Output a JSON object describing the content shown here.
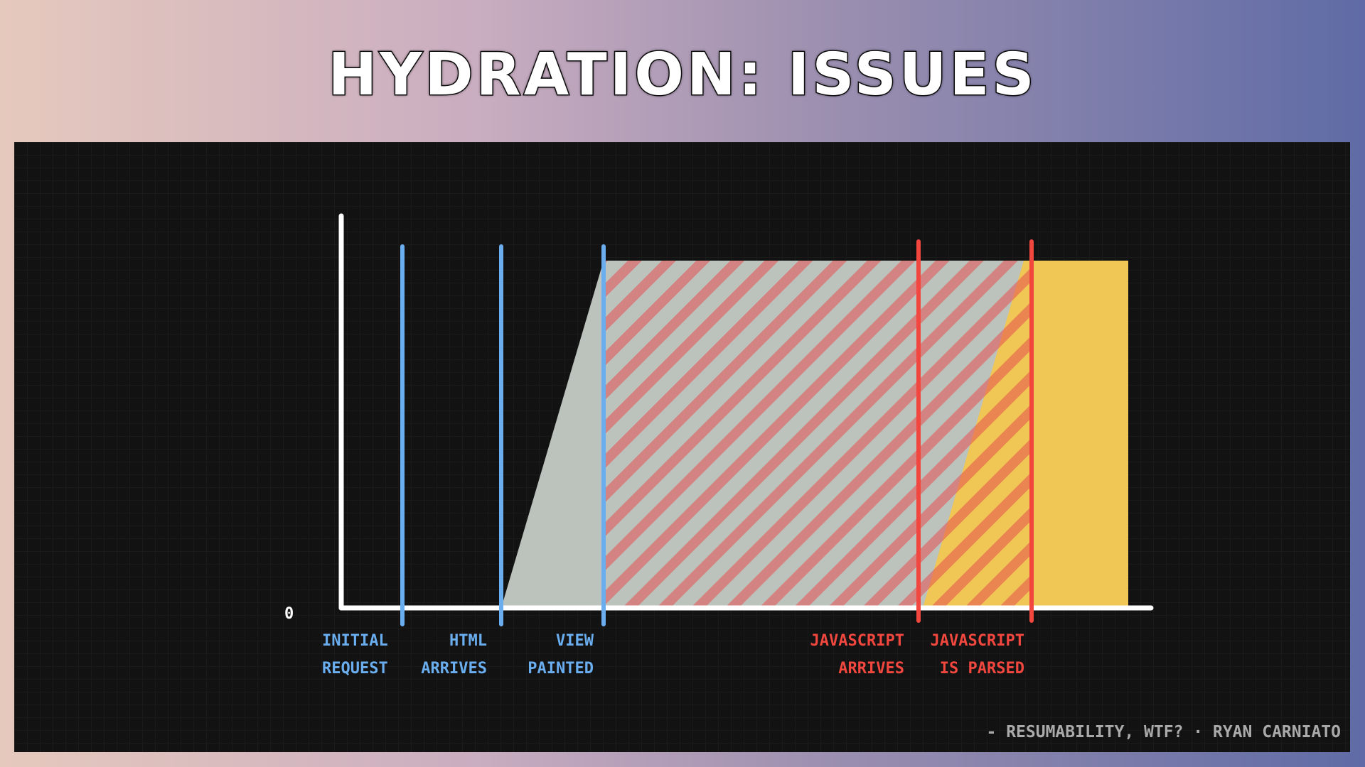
{
  "title": "HYDRATION: ISSUES",
  "axis": {
    "zero_label": "0"
  },
  "markers": [
    {
      "line1": "INITIAL",
      "line2": "REQUEST",
      "color": "#6aaef0"
    },
    {
      "line1": "HTML",
      "line2": "ARRIVES",
      "color": "#6aaef0"
    },
    {
      "line1": "VIEW",
      "line2": "PAINTED",
      "color": "#6aaef0"
    },
    {
      "line1": "JAVASCRIPT",
      "line2": "ARRIVES",
      "color": "#f2473f"
    },
    {
      "line1": "JAVASCRIPT",
      "line2": "IS PARSED",
      "color": "#f2473f"
    }
  ],
  "footer": "- RESUMABILITY, WTF? · RYAN CARNIATO"
}
